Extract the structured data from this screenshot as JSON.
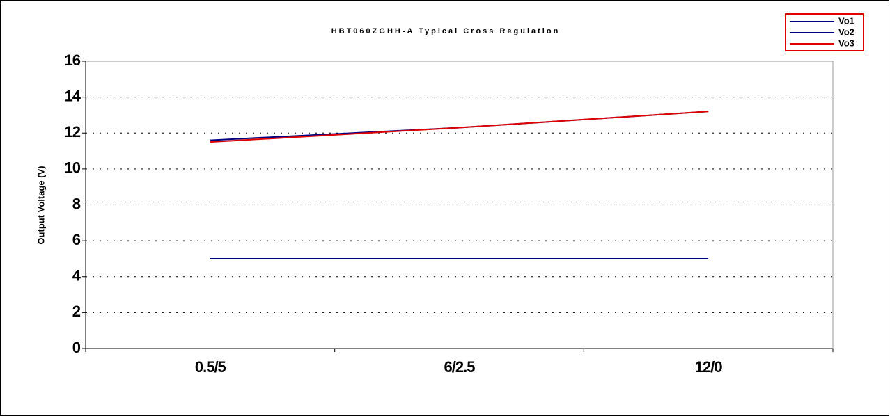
{
  "chart_data": {
    "type": "line",
    "title": "HBT060ZGHH-A Typical Cross Regulation",
    "y_label": "Output Voltage (V)",
    "categories": [
      "0.5/5",
      "6/2.5",
      "12/0"
    ],
    "series": [
      {
        "name": "Vo1",
        "color": "#000080",
        "values": [
          5,
          5,
          5
        ]
      },
      {
        "name": "Vo2",
        "color": "#000080",
        "values": [
          11.6,
          12.3,
          13.2
        ]
      },
      {
        "name": "Vo3",
        "color": "#e00000",
        "values": [
          11.5,
          12.3,
          13.2
        ]
      }
    ],
    "ylim": [
      0,
      16
    ],
    "yticks": [
      0,
      2,
      4,
      6,
      8,
      10,
      12,
      14,
      16
    ],
    "grid": true,
    "legend": "top-right"
  }
}
